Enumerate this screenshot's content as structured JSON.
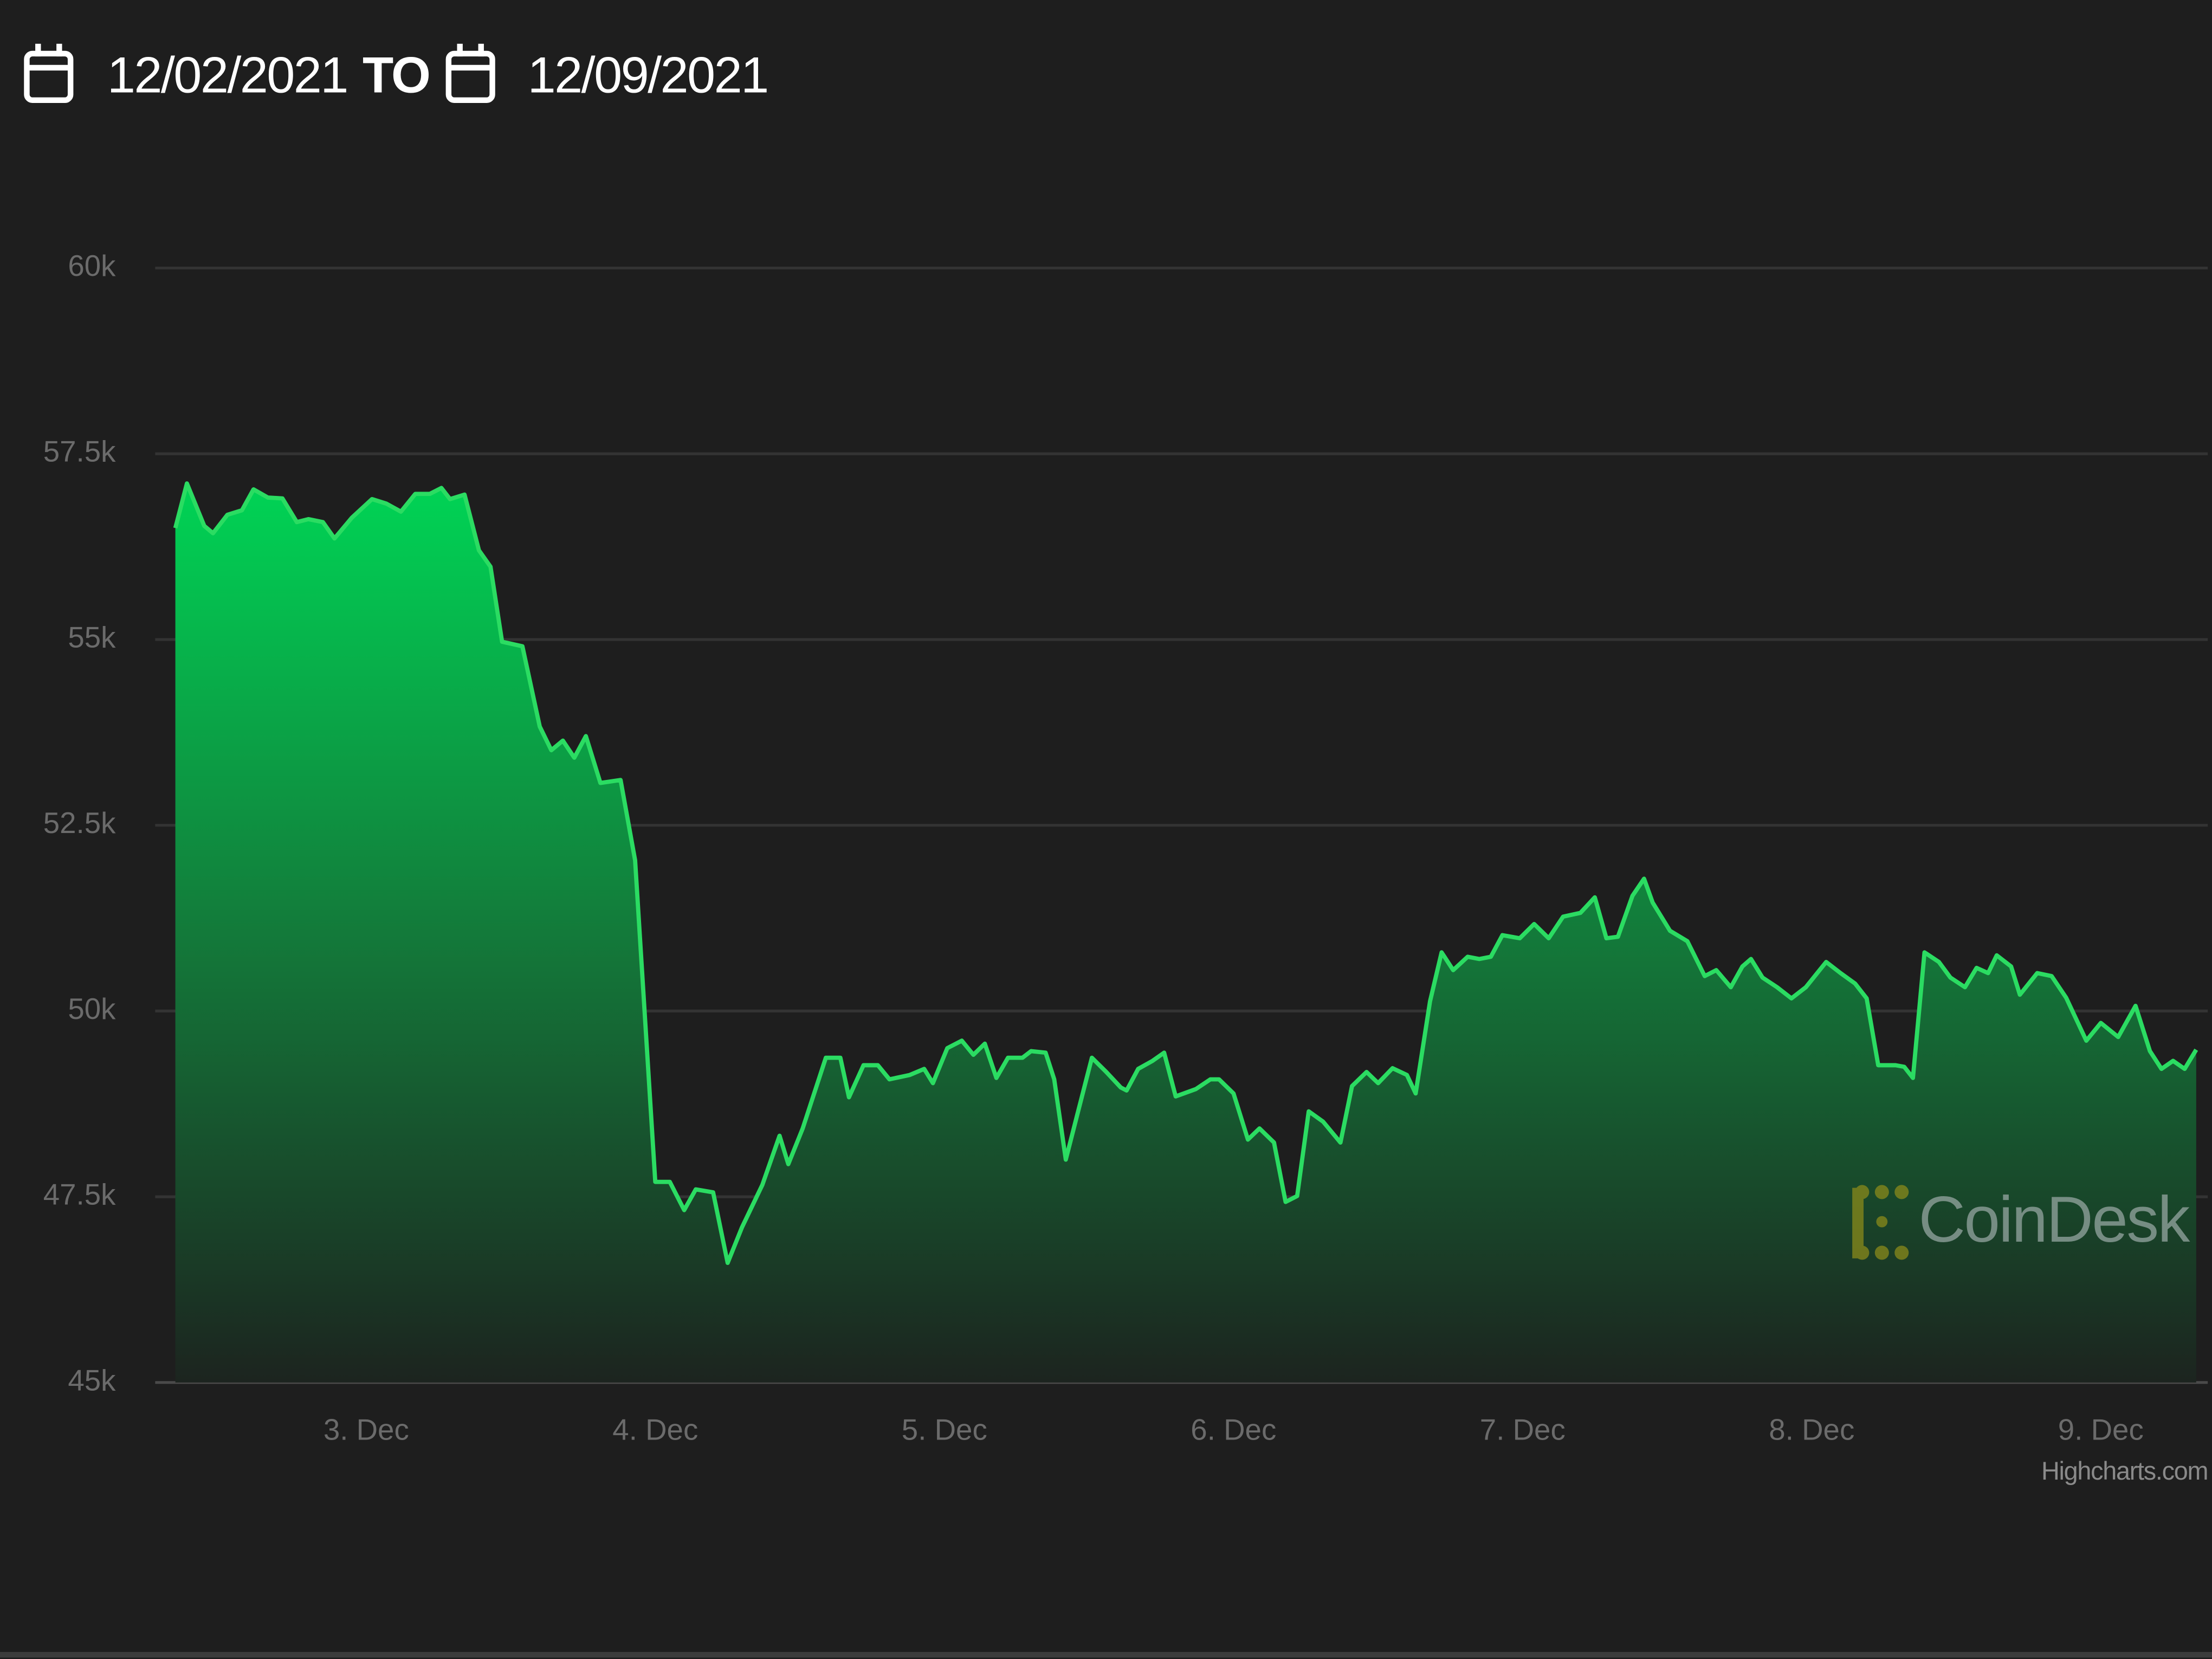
{
  "header": {
    "start_date": "12/02/2021",
    "separator": "TO",
    "end_date": "12/09/2021"
  },
  "chart_data": {
    "type": "area",
    "x": [
      2.34,
      2.38,
      2.44,
      2.47,
      2.52,
      2.57,
      2.61,
      2.66,
      2.71,
      2.76,
      2.8,
      2.85,
      2.89,
      2.95,
      3.02,
      3.07,
      3.12,
      3.17,
      3.22,
      3.26,
      3.29,
      3.34,
      3.39,
      3.43,
      3.47,
      3.54,
      3.6,
      3.64,
      3.68,
      3.72,
      3.76,
      3.81,
      3.88,
      3.93,
      4.0,
      4.05,
      4.1,
      4.14,
      4.2,
      4.25,
      4.3,
      4.37,
      4.43,
      4.46,
      4.51,
      4.59,
      4.64,
      4.67,
      4.72,
      4.77,
      4.81,
      4.88,
      4.93,
      4.96,
      5.01,
      5.06,
      5.1,
      5.14,
      5.18,
      5.22,
      5.27,
      5.3,
      5.35,
      5.38,
      5.42,
      5.46,
      5.51,
      5.56,
      5.61,
      5.63,
      5.67,
      5.72,
      5.76,
      5.8,
      5.87,
      5.92,
      5.95,
      6.0,
      6.05,
      6.09,
      6.14,
      6.18,
      6.22,
      6.26,
      6.31,
      6.37,
      6.41,
      6.46,
      6.5,
      6.55,
      6.6,
      6.63,
      6.68,
      6.72,
      6.76,
      6.81,
      6.85,
      6.89,
      6.93,
      6.99,
      7.04,
      7.09,
      7.14,
      7.2,
      7.25,
      7.29,
      7.33,
      7.38,
      7.42,
      7.45,
      7.51,
      7.57,
      7.63,
      7.67,
      7.72,
      7.76,
      7.79,
      7.83,
      7.88,
      7.93,
      7.98,
      8.05,
      8.1,
      8.15,
      8.19,
      8.23,
      8.29,
      8.32,
      8.35,
      8.39,
      8.44,
      8.48,
      8.53,
      8.57,
      8.61,
      8.64,
      8.69,
      8.72,
      8.78,
      8.83,
      8.88,
      8.95,
      9.0,
      9.06,
      9.12,
      9.17,
      9.21,
      9.25,
      9.29,
      9.33
    ],
    "values": [
      56500,
      57100,
      56530,
      56430,
      56680,
      56740,
      57020,
      56910,
      56900,
      56580,
      56620,
      56580,
      56360,
      56640,
      56890,
      56830,
      56720,
      56960,
      56960,
      57040,
      56890,
      56950,
      56200,
      55980,
      54970,
      54910,
      53830,
      53510,
      53640,
      53410,
      53700,
      53070,
      53110,
      52030,
      47700,
      47700,
      47320,
      47600,
      47560,
      46610,
      47090,
      47660,
      48320,
      47940,
      48420,
      49370,
      49370,
      48840,
      49270,
      49270,
      49080,
      49140,
      49220,
      49030,
      49500,
      49600,
      49410,
      49560,
      49100,
      49370,
      49370,
      49460,
      49440,
      49080,
      48000,
      48610,
      49370,
      49180,
      48970,
      48930,
      49220,
      49330,
      49440,
      48850,
      48950,
      49080,
      49080,
      48890,
      48270,
      48420,
      48230,
      47430,
      47510,
      48650,
      48510,
      48230,
      48990,
      49180,
      49030,
      49230,
      49140,
      48890,
      50130,
      50790,
      50550,
      50730,
      50700,
      50730,
      51020,
      50980,
      51170,
      50980,
      51270,
      51320,
      51530,
      50980,
      51000,
      51550,
      51780,
      51460,
      51080,
      50940,
      50470,
      50550,
      50320,
      50600,
      50700,
      50450,
      50320,
      50170,
      50320,
      50660,
      50510,
      50370,
      50170,
      49270,
      49270,
      49250,
      49100,
      50790,
      50660,
      50450,
      50320,
      50580,
      50510,
      50750,
      50600,
      50220,
      50510,
      50470,
      50180,
      49600,
      49840,
      49650,
      50070,
      49460,
      49220,
      49330,
      49220,
      49480
    ],
    "color": "#2bdc62",
    "xlim": [
      2.27,
      9.37
    ],
    "xticks": [
      {
        "value": 3,
        "label": "3. Dec"
      },
      {
        "value": 4,
        "label": "4. Dec"
      },
      {
        "value": 5,
        "label": "5. Dec"
      },
      {
        "value": 6,
        "label": "6. Dec"
      },
      {
        "value": 7,
        "label": "7. Dec"
      },
      {
        "value": 8,
        "label": "8. Dec"
      },
      {
        "value": 9,
        "label": "9. Dec"
      }
    ],
    "ylim": [
      45000,
      60000
    ],
    "yticks": [
      {
        "value": 45000,
        "label": "45k"
      },
      {
        "value": 47500,
        "label": "47.5k"
      },
      {
        "value": 50000,
        "label": "50k"
      },
      {
        "value": 52500,
        "label": "52.5k"
      },
      {
        "value": 55000,
        "label": "55k"
      },
      {
        "value": 57500,
        "label": "57.5k"
      },
      {
        "value": 60000,
        "label": "60k"
      }
    ],
    "grid": true,
    "watermark": "CoinDesk",
    "credits": "Highcharts.com"
  }
}
